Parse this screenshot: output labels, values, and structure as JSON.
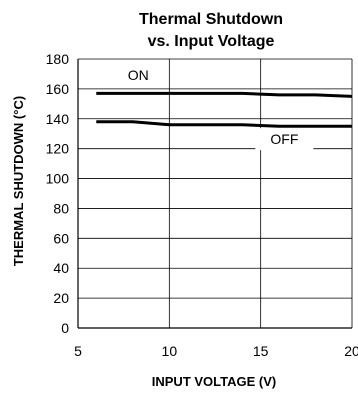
{
  "chart_data": {
    "type": "line",
    "title_line1": "Thermal Shutdown",
    "title_line2": "vs. Input Voltage",
    "xlabel": "INPUT VOLTAGE (V)",
    "ylabel": "THERMAL SHUTDOWN (°C)",
    "xlim": [
      5,
      20
    ],
    "ylim": [
      0,
      180
    ],
    "xticks": [
      5,
      10,
      15,
      20
    ],
    "yticks": [
      0,
      20,
      40,
      60,
      80,
      100,
      120,
      140,
      160,
      180
    ],
    "grid": true,
    "series": [
      {
        "x": [
          6,
          8,
          10,
          12,
          14,
          16,
          18,
          20
        ],
        "y": [
          157,
          157,
          157,
          157,
          157,
          156,
          156,
          155
        ]
      },
      {
        "x": [
          6,
          8,
          10,
          12,
          14,
          16,
          18,
          20
        ],
        "y": [
          138,
          138,
          136,
          136,
          136,
          135,
          135,
          135
        ]
      }
    ],
    "annotations": [
      {
        "text": "ON",
        "x": 8.3,
        "y": 166
      },
      {
        "text": "OFF",
        "x": 16.3,
        "y": 123
      }
    ],
    "line_color": "#000000",
    "grid_color": "#000000"
  }
}
